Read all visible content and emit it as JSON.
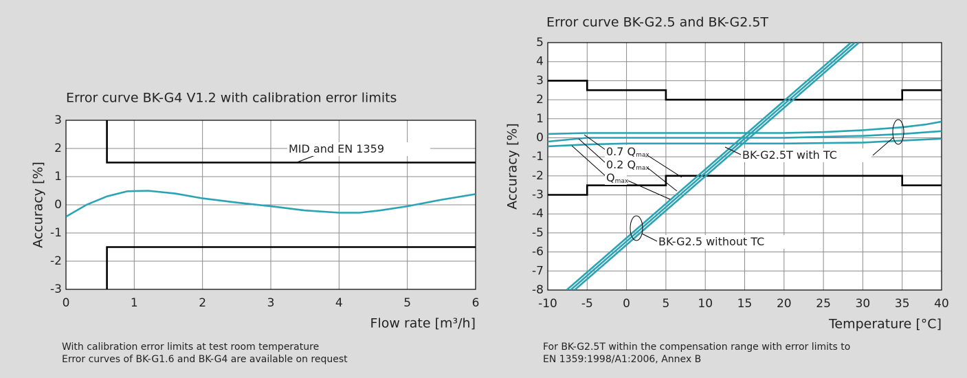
{
  "chart_data": [
    {
      "type": "line",
      "title": "Error curve BK-G4 V1.2 with calibration error limits",
      "y_label": "Accuracy [%]",
      "x_label": "Flow rate [m³/h]",
      "xlim": [
        0,
        6
      ],
      "ylim": [
        -3,
        3
      ],
      "xticks": [
        0,
        1,
        2,
        3,
        4,
        5,
        6
      ],
      "yticks": [
        -3,
        -2,
        -1,
        0,
        1,
        2,
        3
      ],
      "grid": true,
      "series": [
        {
          "color": "#2aa3b5",
          "x": [
            0,
            0.3,
            0.6,
            0.9,
            1.2,
            1.6,
            2,
            2.5,
            3,
            3.5,
            4,
            4.3,
            4.6,
            5,
            5.5,
            6
          ],
          "values": [
            -0.42,
            0,
            0.3,
            0.48,
            0.5,
            0.4,
            0.23,
            0.08,
            -0.05,
            -0.2,
            -0.28,
            -0.28,
            -0.2,
            -0.05,
            0.18,
            0.38
          ]
        },
        {
          "color": "#000000",
          "x": [
            0.6,
            0.6,
            6
          ],
          "values": [
            3,
            1.5,
            1.5
          ]
        },
        {
          "color": "#000000",
          "x": [
            0.6,
            0.6,
            6
          ],
          "values": [
            -3,
            -1.5,
            -1.5
          ]
        }
      ],
      "annotations": [
        {
          "text": "MID and EN 1359"
        }
      ],
      "notes": [
        "With calibration error limits at test room temperature",
        "Error curves of BK-G1.6 and BK-G4 are available on request"
      ]
    },
    {
      "type": "line",
      "title": "Error curve BK-G2.5 and BK-G2.5T",
      "y_label": "Accuracy [%]",
      "x_label": "Temperature [°C]",
      "xlim": [
        -10,
        40
      ],
      "ylim": [
        -8,
        5
      ],
      "xticks": [
        -10,
        -5,
        0,
        5,
        10,
        15,
        20,
        25,
        30,
        35,
        40
      ],
      "yticks": [
        -8,
        -7,
        -6,
        -5,
        -4,
        -3,
        -2,
        -1,
        0,
        1,
        2,
        3,
        4,
        5
      ],
      "grid": true,
      "series": [
        {
          "color": "#000000",
          "x": [
            -10,
            -5,
            -5,
            5,
            5,
            35,
            35,
            40
          ],
          "values": [
            3,
            3,
            2.5,
            2.5,
            2,
            2,
            2.5,
            2.5
          ]
        },
        {
          "color": "#000000",
          "x": [
            -10,
            -5,
            -5,
            5,
            5,
            35,
            35,
            40
          ],
          "values": [
            -3,
            -3,
            -2.5,
            -2.5,
            -2,
            -2,
            -2.5,
            -2.5
          ]
        },
        {
          "color": "#2aa3b5",
          "x": [
            -10,
            -5,
            0,
            5,
            10,
            15,
            20,
            25,
            30,
            35,
            38,
            40
          ],
          "values": [
            0.2,
            0.25,
            0.25,
            0.25,
            0.25,
            0.25,
            0.25,
            0.3,
            0.4,
            0.55,
            0.7,
            0.85
          ]
        },
        {
          "color": "#2aa3b5",
          "x": [
            -10,
            -5,
            0,
            10,
            20,
            25,
            30,
            35,
            40
          ],
          "values": [
            -0.2,
            0,
            0,
            0,
            0,
            0.05,
            0.1,
            0.2,
            0.35
          ]
        },
        {
          "color": "#2aa3b5",
          "x": [
            -10,
            -5,
            0,
            10,
            20,
            30,
            35,
            40
          ],
          "values": [
            -0.45,
            -0.35,
            -0.3,
            -0.3,
            -0.3,
            -0.25,
            -0.15,
            -0.05
          ]
        },
        {
          "color": "#2aa3b5",
          "x": [
            -7.6,
            28.5
          ],
          "values": [
            -8,
            5
          ]
        },
        {
          "color": "#2aa3b5",
          "x": [
            -7.1,
            29.0
          ],
          "values": [
            -8,
            5
          ]
        },
        {
          "color": "#2aa3b5",
          "x": [
            -6.6,
            29.5
          ],
          "values": [
            -8,
            5
          ]
        }
      ],
      "annotations": [
        {
          "text": "0.7 Q",
          "sub": "max"
        },
        {
          "text": "0.2 Q",
          "sub": "max"
        },
        {
          "text": "Q",
          "sub": "max"
        },
        {
          "text": "BK-G2.5T with TC"
        },
        {
          "text": "BK-G2.5 without TC"
        }
      ],
      "notes": [
        "For BK-G2.5T within the compensation range with error limits to",
        "EN 1359:1998/A1:2006, Annex B"
      ]
    }
  ]
}
